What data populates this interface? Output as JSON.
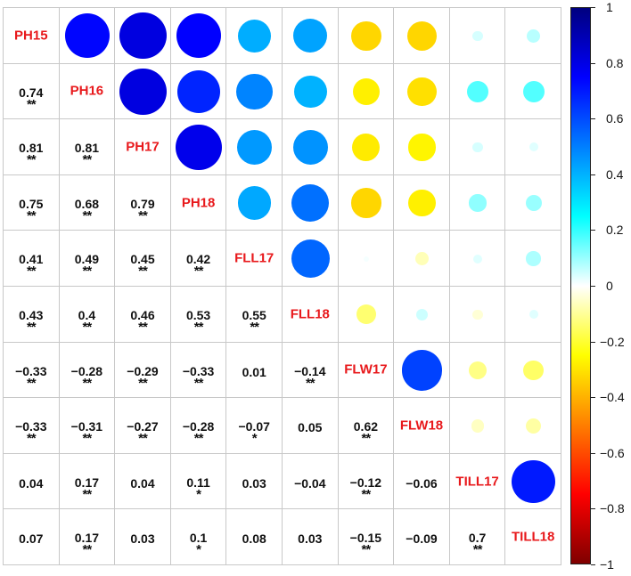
{
  "chart_data": {
    "type": "heatmap",
    "subtype": "correlation-matrix (mixed: circles upper, numbers lower)",
    "variables": [
      "PH15",
      "PH16",
      "PH17",
      "PH18",
      "FLL17",
      "FLL18",
      "FLW17",
      "FLW18",
      "TILL17",
      "TILL18"
    ],
    "matrix": [
      [
        1,
        0.74,
        0.81,
        0.75,
        0.41,
        0.43,
        -0.33,
        -0.33,
        0.04,
        0.07
      ],
      [
        0.74,
        1,
        0.81,
        0.68,
        0.49,
        0.4,
        -0.28,
        -0.31,
        0.17,
        0.17
      ],
      [
        0.81,
        0.81,
        1,
        0.79,
        0.45,
        0.46,
        -0.29,
        -0.27,
        0.04,
        0.03
      ],
      [
        0.75,
        0.68,
        0.79,
        1,
        0.42,
        0.53,
        -0.33,
        -0.28,
        0.11,
        0.1
      ],
      [
        0.41,
        0.49,
        0.45,
        0.42,
        1,
        0.55,
        0.01,
        -0.07,
        0.03,
        0.08
      ],
      [
        0.43,
        0.4,
        0.46,
        0.53,
        0.55,
        1,
        -0.14,
        0.05,
        -0.04,
        0.03
      ],
      [
        -0.33,
        -0.28,
        -0.29,
        -0.33,
        0.01,
        -0.14,
        1,
        0.62,
        -0.12,
        -0.15
      ],
      [
        -0.33,
        -0.31,
        -0.27,
        -0.28,
        -0.07,
        0.05,
        0.62,
        1,
        -0.06,
        -0.09
      ],
      [
        0.04,
        0.17,
        0.04,
        0.11,
        0.03,
        -0.04,
        -0.12,
        -0.06,
        1,
        0.7
      ],
      [
        0.07,
        0.17,
        0.03,
        0.1,
        0.08,
        0.03,
        -0.15,
        -0.09,
        0.7,
        1
      ]
    ],
    "significance": [
      [
        "",
        "**",
        "**",
        "**",
        "**",
        "**",
        "**",
        "**",
        "",
        ""
      ],
      [
        "**",
        "",
        "**",
        "**",
        "**",
        "**",
        "**",
        "**",
        "**",
        "**"
      ],
      [
        "**",
        "**",
        "",
        "**",
        "**",
        "**",
        "**",
        "**",
        "",
        ""
      ],
      [
        "**",
        "**",
        "**",
        "",
        "**",
        "**",
        "**",
        "**",
        "*",
        "*"
      ],
      [
        "**",
        "**",
        "**",
        "**",
        "",
        "**",
        "",
        "*",
        "",
        ""
      ],
      [
        "**",
        "**",
        "**",
        "**",
        "**",
        "",
        "**",
        "",
        "",
        ""
      ],
      [
        "**",
        "**",
        "**",
        "**",
        "",
        "**",
        "",
        "**",
        "**",
        "**"
      ],
      [
        "**",
        "**",
        "**",
        "**",
        "*",
        "",
        "**",
        "",
        "",
        ""
      ],
      [
        "",
        "**",
        "",
        "*",
        "",
        "",
        "**",
        "",
        "",
        "**"
      ],
      [
        "",
        "**",
        "",
        "*",
        "",
        "",
        "**",
        "",
        "**",
        ""
      ]
    ],
    "upper_triangle": "circles (size & color = r)",
    "lower_triangle": "numeric r with significance stars",
    "diagonal": "variable labels",
    "colorbar": {
      "range": [
        -1,
        1
      ],
      "ticks": [
        1,
        0.8,
        0.6,
        0.4,
        0.2,
        0,
        -0.2,
        -0.4,
        -0.6,
        -0.8,
        -1
      ],
      "tick_labels": [
        "1",
        "0.8",
        "0.6",
        "0.4",
        "0.2",
        "0",
        "−0.2",
        "−0.4",
        "−0.6",
        "−0.8",
        "−1"
      ],
      "position": "right"
    },
    "colormap": [
      "#7F0000",
      "#FF0000",
      "#FF7F00",
      "#FFFF00",
      "#FFFFFF",
      "#00FFFF",
      "#007FFF",
      "#0000FF",
      "#00007F"
    ]
  },
  "style": {
    "label_color": "#E8191C",
    "grid_color": "#C8C8C8",
    "number_color": "#111111"
  }
}
